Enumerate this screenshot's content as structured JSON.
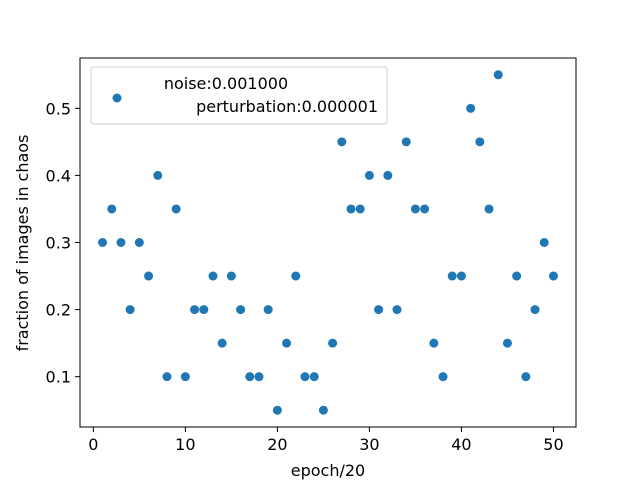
{
  "chart_data": {
    "type": "scatter",
    "title": "",
    "xlabel": "epoch/20",
    "ylabel": "fraction of images in chaos",
    "xlim": [
      -1.45,
      52.45
    ],
    "ylim": [
      0.025,
      0.575
    ],
    "xticks": [
      0,
      10,
      20,
      30,
      40,
      50
    ],
    "xtick_labels": [
      "0",
      "10",
      "20",
      "30",
      "40",
      "50"
    ],
    "yticks": [
      0.1,
      0.2,
      0.3,
      0.4,
      0.5
    ],
    "ytick_labels": [
      "0.1",
      "0.2",
      "0.3",
      "0.4",
      "0.5"
    ],
    "grid": false,
    "legend_position": "top-left",
    "series": [
      {
        "name": "noise:0.001000\n perturbation:0.000001",
        "legend_lines": [
          "noise:0.001000",
          "perturbation:0.000001"
        ],
        "color": "#1f77b4",
        "x": [
          1,
          2,
          3,
          4,
          5,
          6,
          7,
          8,
          9,
          10,
          11,
          12,
          13,
          14,
          15,
          16,
          17,
          18,
          19,
          20,
          21,
          22,
          23,
          24,
          25,
          26,
          27,
          28,
          29,
          30,
          31,
          32,
          33,
          34,
          35,
          36,
          37,
          38,
          39,
          40,
          41,
          42,
          43,
          44,
          45,
          46,
          47,
          48,
          49,
          50
        ],
        "y": [
          0.3,
          0.35,
          0.3,
          0.2,
          0.3,
          0.25,
          0.4,
          0.1,
          0.35,
          0.1,
          0.2,
          0.2,
          0.25,
          0.15,
          0.25,
          0.2,
          0.1,
          0.1,
          0.2,
          0.05,
          0.15,
          0.25,
          0.1,
          0.1,
          0.05,
          0.15,
          0.45,
          0.35,
          0.35,
          0.4,
          0.2,
          0.4,
          0.2,
          0.45,
          0.35,
          0.35,
          0.15,
          0.1,
          0.25,
          0.25,
          0.5,
          0.45,
          0.35,
          0.55,
          0.15,
          0.25,
          0.1,
          0.2,
          0.3,
          0.25
        ]
      }
    ]
  }
}
